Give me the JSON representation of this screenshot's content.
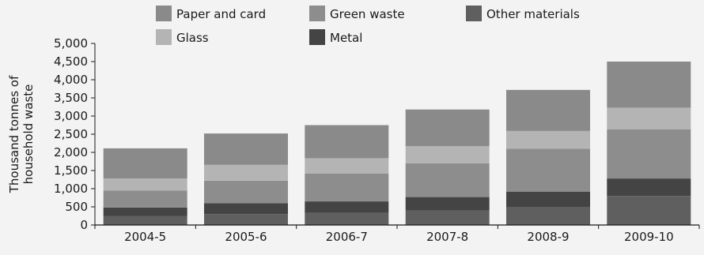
{
  "chart_data": {
    "type": "bar",
    "stacked": true,
    "categories": [
      "2004-5",
      "2005-6",
      "2006-7",
      "2007-8",
      "2008-9",
      "2009-10"
    ],
    "ylabel": "Thousand tonnes of household waste",
    "ylim": [
      0,
      5000
    ],
    "yticks": [
      "0",
      "500",
      "1,000",
      "1,500",
      "2,000",
      "2,500",
      "3,000",
      "3,500",
      "4,000",
      "4,500",
      "5,000"
    ],
    "legend_position": "top",
    "series": [
      {
        "name": "Other materials",
        "color": "#5f5f5f",
        "values": [
          250,
          300,
          330,
          400,
          500,
          800
        ]
      },
      {
        "name": "Metal",
        "color": "#444444",
        "values": [
          230,
          300,
          320,
          370,
          420,
          480
        ]
      },
      {
        "name": "Green waste",
        "color": "#8d8d8d",
        "values": [
          470,
          620,
          770,
          930,
          1180,
          1350
        ]
      },
      {
        "name": "Glass",
        "color": "#b4b4b4",
        "values": [
          330,
          440,
          420,
          470,
          490,
          600
        ]
      },
      {
        "name": "Paper and card",
        "color": "#8a8a8a",
        "values": [
          830,
          860,
          910,
          1010,
          1130,
          1270
        ]
      }
    ]
  }
}
